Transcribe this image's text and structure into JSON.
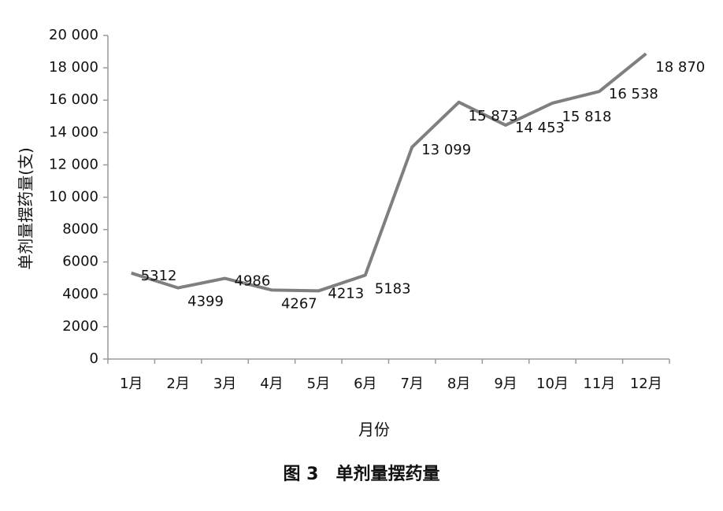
{
  "chart_data": {
    "type": "line",
    "caption": "图 3　单剂量摆药量",
    "x_label": "月份",
    "y_label": "单剂量摆药量(支)",
    "categories": [
      "1月",
      "2月",
      "3月",
      "4月",
      "5月",
      "6月",
      "7月",
      "8月",
      "9月",
      "10月",
      "11月",
      "12月"
    ],
    "values": [
      5312,
      4399,
      4986,
      4267,
      4213,
      5183,
      13099,
      15873,
      14453,
      15818,
      16538,
      18870
    ],
    "value_labels": [
      "5312",
      "4399",
      "4986",
      "4267",
      "4213",
      "5183",
      "13 099",
      "15 873",
      "14 453",
      "15 818",
      "16 538",
      "18 870"
    ],
    "color": "#7f7f7f",
    "ylim": [
      0,
      20000
    ],
    "yticks": [
      0,
      2000,
      4000,
      6000,
      8000,
      {
        "value": 10000,
        "label": "10 000"
      },
      {
        "value": 12000,
        "label": "12 000"
      },
      {
        "value": 14000,
        "label": "14 000"
      },
      {
        "value": 16000,
        "label": "16 000"
      },
      {
        "value": 18000,
        "label": "18 000"
      },
      {
        "value": 20000,
        "label": "20 000"
      }
    ],
    "grid": false
  }
}
